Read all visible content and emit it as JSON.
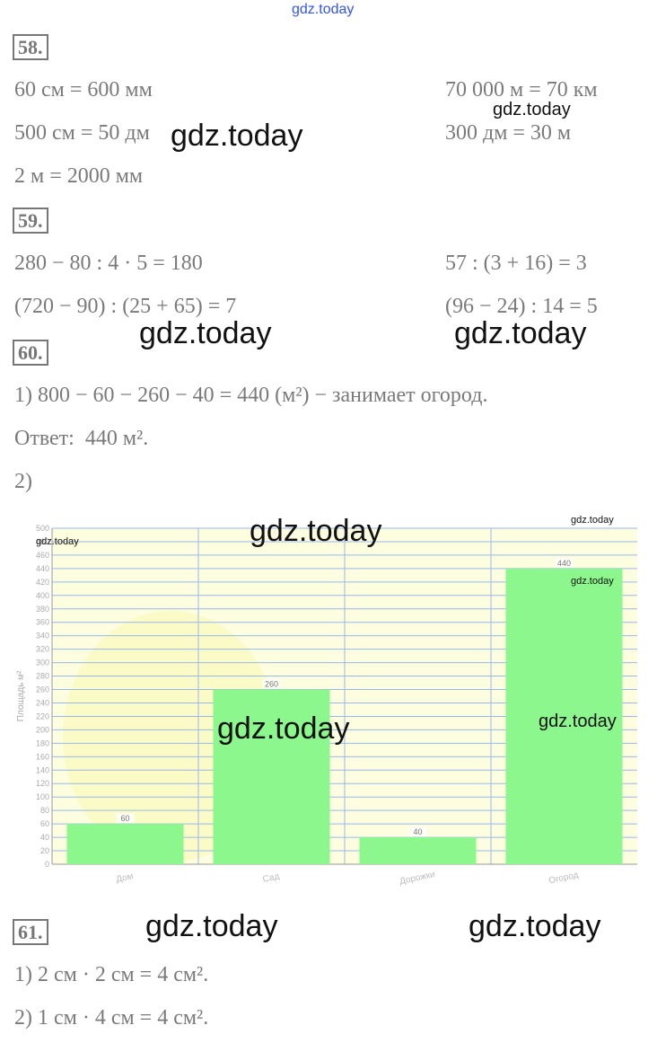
{
  "problems": [
    {
      "number": "58.",
      "left": [
        "60 см = 600 мм",
        "500 см = 50 дм",
        "2 м = 2000 мм"
      ],
      "right": [
        "70 000 м = 70 км",
        "300 дм = 30 м"
      ]
    },
    {
      "number": "59.",
      "left": [
        "280 − 80 : 4 · 5 = 180",
        "(720 − 90) : (25 + 65) = 7"
      ],
      "right": [
        "57 : (3 + 16) = 3",
        "(96 − 24) : 14 = 5"
      ]
    },
    {
      "number": "60.",
      "left": [
        "1) 800 − 60 − 260 − 40 = 440 (м²) − занимает огород.",
        "Ответ:  440 м².",
        "2)"
      ],
      "right": []
    },
    {
      "number": "61.",
      "left": [
        "1) 2 см · 2 см = 4 см².",
        "2) 1 см · 4 см = 4 см²."
      ],
      "right": []
    }
  ],
  "watermarks": [
    "gdz.today",
    "gdz.today",
    "gdz.today",
    "gdz.today",
    "gdz.today",
    "gdz.today",
    "gdz.today",
    "gdz.today",
    "gdz.today",
    "gdz.today",
    "gdz.today",
    "gdz.today",
    "gdz.today"
  ],
  "chart_data": {
    "type": "bar",
    "y_label": "Площадь м²",
    "categories": [
      "Дом",
      "Сад",
      "Дорожки",
      "Огород"
    ],
    "values": [
      60,
      260,
      40,
      440
    ],
    "value_labels": [
      "60",
      "260",
      "40",
      "440"
    ],
    "color": "#8cf78c",
    "ylim": [
      0,
      500
    ],
    "yticks": [
      0,
      20,
      40,
      60,
      80,
      100,
      120,
      140,
      160,
      180,
      200,
      220,
      240,
      260,
      280,
      300,
      320,
      340,
      360,
      380,
      400,
      420,
      440,
      460,
      480,
      500
    ],
    "grid": true
  }
}
